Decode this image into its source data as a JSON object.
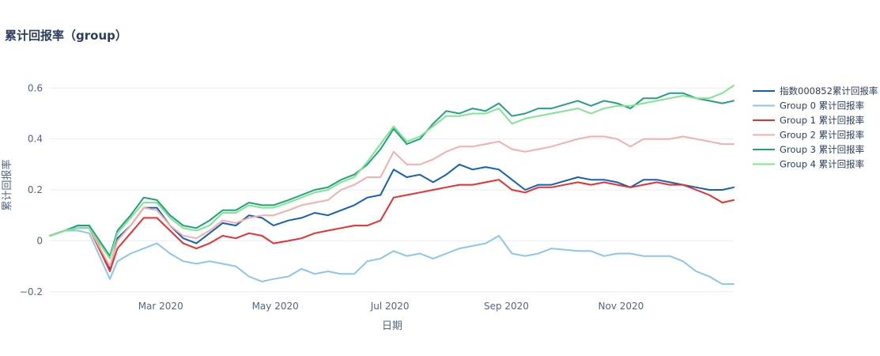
{
  "chart_data": {
    "type": "line",
    "title": "累计回报率（group）",
    "xlabel": "日期",
    "ylabel": "累计回报率",
    "x_range": [
      "2020-01-02",
      "2020-12-31"
    ],
    "ylim": [
      -0.21,
      0.66
    ],
    "y_ticks": [
      -0.2,
      0,
      0.2,
      0.4,
      0.6
    ],
    "y_tick_labels": [
      "−0.2",
      "0",
      "0.2",
      "0.4",
      "0.6"
    ],
    "x_ticks": [
      "2020-03-01",
      "2020-05-01",
      "2020-07-01",
      "2020-09-01",
      "2020-11-01"
    ],
    "x_tick_labels": [
      "Mar 2020",
      "May 2020",
      "Jul 2020",
      "Sep 2020",
      "Nov 2020"
    ],
    "grid": true,
    "legend_position": "right",
    "dates": [
      "2020-01-02",
      "2020-01-10",
      "2020-01-17",
      "2020-01-23",
      "2020-02-03",
      "2020-02-07",
      "2020-02-14",
      "2020-02-21",
      "2020-02-28",
      "2020-03-06",
      "2020-03-13",
      "2020-03-20",
      "2020-03-27",
      "2020-04-03",
      "2020-04-10",
      "2020-04-17",
      "2020-04-24",
      "2020-04-30",
      "2020-05-08",
      "2020-05-15",
      "2020-05-22",
      "2020-05-29",
      "2020-06-05",
      "2020-06-12",
      "2020-06-19",
      "2020-06-26",
      "2020-07-03",
      "2020-07-10",
      "2020-07-17",
      "2020-07-24",
      "2020-07-31",
      "2020-08-07",
      "2020-08-14",
      "2020-08-21",
      "2020-08-28",
      "2020-09-04",
      "2020-09-11",
      "2020-09-18",
      "2020-09-25",
      "2020-10-09",
      "2020-10-16",
      "2020-10-23",
      "2020-10-30",
      "2020-11-06",
      "2020-11-13",
      "2020-11-20",
      "2020-11-27",
      "2020-12-04",
      "2020-12-11",
      "2020-12-18",
      "2020-12-25",
      "2020-12-31"
    ],
    "series": [
      {
        "name": "指数000852累计回报率",
        "color": "#1261b8",
        "values": [
          0.02,
          0.04,
          0.06,
          0.06,
          -0.11,
          0.01,
          0.06,
          0.13,
          0.13,
          0.06,
          0.01,
          -0.01,
          0.03,
          0.07,
          0.06,
          0.1,
          0.09,
          0.06,
          0.08,
          0.09,
          0.11,
          0.1,
          0.12,
          0.14,
          0.17,
          0.18,
          0.28,
          0.25,
          0.26,
          0.23,
          0.26,
          0.3,
          0.28,
          0.29,
          0.28,
          0.24,
          0.2,
          0.22,
          0.22,
          0.25,
          0.24,
          0.24,
          0.23,
          0.21,
          0.24,
          0.24,
          0.23,
          0.22,
          0.21,
          0.2,
          0.2,
          0.21
        ]
      },
      {
        "name": "Group 0 累计回报率",
        "color": "#8ac6ef",
        "values": [
          0.02,
          0.04,
          0.04,
          0.03,
          -0.15,
          -0.08,
          -0.05,
          -0.03,
          -0.01,
          -0.05,
          -0.08,
          -0.09,
          -0.08,
          -0.09,
          -0.1,
          -0.14,
          -0.16,
          -0.15,
          -0.14,
          -0.11,
          -0.13,
          -0.12,
          -0.13,
          -0.13,
          -0.08,
          -0.07,
          -0.04,
          -0.06,
          -0.05,
          -0.07,
          -0.05,
          -0.03,
          -0.02,
          -0.01,
          0.02,
          -0.05,
          -0.06,
          -0.05,
          -0.03,
          -0.04,
          -0.04,
          -0.06,
          -0.05,
          -0.05,
          -0.06,
          -0.06,
          -0.06,
          -0.08,
          -0.12,
          -0.14,
          -0.17,
          -0.17
        ]
      },
      {
        "name": "Group 1 累计回报率",
        "color": "#e8302f",
        "values": [
          0.02,
          0.04,
          0.05,
          0.05,
          -0.12,
          -0.03,
          0.03,
          0.09,
          0.09,
          0.04,
          -0.01,
          -0.03,
          -0.01,
          0.02,
          0.01,
          0.03,
          0.02,
          -0.01,
          0.0,
          0.01,
          0.03,
          0.04,
          0.05,
          0.06,
          0.06,
          0.08,
          0.17,
          0.18,
          0.19,
          0.2,
          0.21,
          0.22,
          0.22,
          0.23,
          0.24,
          0.2,
          0.19,
          0.21,
          0.21,
          0.23,
          0.22,
          0.23,
          0.22,
          0.21,
          0.22,
          0.23,
          0.22,
          0.22,
          0.2,
          0.18,
          0.15,
          0.16
        ]
      },
      {
        "name": "Group 2 累计回报率",
        "color": "#f6aeac",
        "values": [
          0.02,
          0.04,
          0.05,
          0.05,
          -0.1,
          0.0,
          0.06,
          0.13,
          0.12,
          0.06,
          0.02,
          0.01,
          0.04,
          0.08,
          0.07,
          0.09,
          0.1,
          0.1,
          0.12,
          0.14,
          0.15,
          0.16,
          0.2,
          0.22,
          0.25,
          0.25,
          0.35,
          0.3,
          0.3,
          0.32,
          0.35,
          0.37,
          0.37,
          0.38,
          0.39,
          0.36,
          0.35,
          0.36,
          0.37,
          0.4,
          0.41,
          0.41,
          0.4,
          0.37,
          0.4,
          0.4,
          0.4,
          0.41,
          0.4,
          0.39,
          0.38,
          0.38
        ]
      },
      {
        "name": "Group 3 累计回报率",
        "color": "#22a082",
        "values": [
          0.02,
          0.04,
          0.06,
          0.06,
          -0.06,
          0.04,
          0.1,
          0.17,
          0.16,
          0.1,
          0.06,
          0.05,
          0.08,
          0.12,
          0.12,
          0.15,
          0.14,
          0.14,
          0.16,
          0.18,
          0.2,
          0.21,
          0.24,
          0.26,
          0.3,
          0.36,
          0.44,
          0.38,
          0.4,
          0.46,
          0.51,
          0.5,
          0.52,
          0.51,
          0.54,
          0.49,
          0.5,
          0.52,
          0.52,
          0.55,
          0.53,
          0.55,
          0.54,
          0.52,
          0.56,
          0.56,
          0.58,
          0.58,
          0.56,
          0.55,
          0.54,
          0.55
        ]
      },
      {
        "name": "Group 4 累计回报率",
        "color": "#7ee68e",
        "values": [
          0.02,
          0.04,
          0.05,
          0.05,
          -0.07,
          0.03,
          0.09,
          0.15,
          0.15,
          0.09,
          0.05,
          0.04,
          0.06,
          0.11,
          0.11,
          0.14,
          0.13,
          0.13,
          0.15,
          0.17,
          0.19,
          0.2,
          0.23,
          0.25,
          0.31,
          0.38,
          0.45,
          0.39,
          0.41,
          0.45,
          0.49,
          0.49,
          0.5,
          0.5,
          0.52,
          0.46,
          0.48,
          0.49,
          0.5,
          0.52,
          0.5,
          0.52,
          0.53,
          0.53,
          0.54,
          0.55,
          0.56,
          0.57,
          0.56,
          0.56,
          0.58,
          0.61
        ]
      }
    ]
  }
}
